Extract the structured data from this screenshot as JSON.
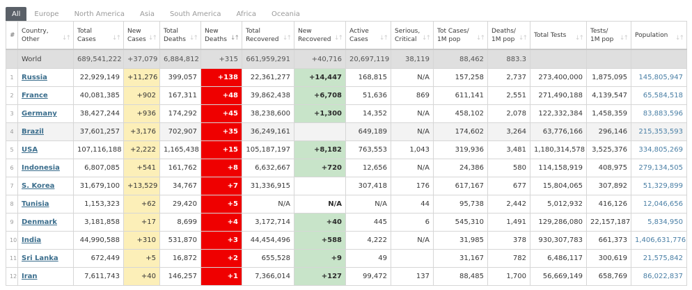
{
  "tabs": [
    {
      "label": "All",
      "active": true
    },
    {
      "label": "Europe",
      "active": false
    },
    {
      "label": "North America",
      "active": false
    },
    {
      "label": "Asia",
      "active": false
    },
    {
      "label": "South America",
      "active": false
    },
    {
      "label": "Africa",
      "active": false
    },
    {
      "label": "Oceania",
      "active": false
    }
  ],
  "table": {
    "sort_icon": "sort-arrows-icon",
    "active_sort_column": "New Deaths",
    "headers": [
      "#",
      "Country, Other",
      "Total Cases",
      "New Cases",
      "Total Deaths",
      "New Deaths",
      "Total Recovered",
      "New Recovered",
      "Active Cases",
      "Serious, Critical",
      "Tot Cases/ 1M pop",
      "Deaths/ 1M pop",
      "Total Tests",
      "Tests/ 1M pop",
      "Population"
    ],
    "world": {
      "country": "World",
      "total_cases": "689,541,222",
      "new_cases": "+37,079",
      "total_deaths": "6,884,812",
      "new_deaths": "+315",
      "total_recovered": "661,959,291",
      "new_recovered": "+40,716",
      "active_cases": "20,697,119",
      "serious_critical": "38,119",
      "tot_cases_1m": "88,462",
      "deaths_1m": "883.3",
      "total_tests": "",
      "tests_1m": "",
      "population": ""
    },
    "rows": [
      {
        "idx": "1",
        "country": "Russia",
        "total_cases": "22,929,149",
        "new_cases": "+11,276",
        "total_deaths": "399,057",
        "new_deaths": "+138",
        "total_recovered": "22,361,277",
        "new_recovered": "+14,447",
        "active_cases": "168,815",
        "serious_critical": "N/A",
        "tot_cases_1m": "157,258",
        "deaths_1m": "2,737",
        "total_tests": "273,400,000",
        "tests_1m": "1,875,095",
        "population": "145,805,947"
      },
      {
        "idx": "2",
        "country": "France",
        "total_cases": "40,081,385",
        "new_cases": "+902",
        "total_deaths": "167,311",
        "new_deaths": "+48",
        "total_recovered": "39,862,438",
        "new_recovered": "+6,708",
        "active_cases": "51,636",
        "serious_critical": "869",
        "tot_cases_1m": "611,141",
        "deaths_1m": "2,551",
        "total_tests": "271,490,188",
        "tests_1m": "4,139,547",
        "population": "65,584,518"
      },
      {
        "idx": "3",
        "country": "Germany",
        "total_cases": "38,427,244",
        "new_cases": "+936",
        "total_deaths": "174,292",
        "new_deaths": "+45",
        "total_recovered": "38,238,600",
        "new_recovered": "+1,300",
        "active_cases": "14,352",
        "serious_critical": "N/A",
        "tot_cases_1m": "458,102",
        "deaths_1m": "2,078",
        "total_tests": "122,332,384",
        "tests_1m": "1,458,359",
        "population": "83,883,596"
      },
      {
        "idx": "4",
        "country": "Brazil",
        "total_cases": "37,601,257",
        "new_cases": "+3,176",
        "total_deaths": "702,907",
        "new_deaths": "+35",
        "total_recovered": "36,249,161",
        "new_recovered": "",
        "active_cases": "649,189",
        "serious_critical": "N/A",
        "tot_cases_1m": "174,602",
        "deaths_1m": "3,264",
        "total_tests": "63,776,166",
        "tests_1m": "296,146",
        "population": "215,353,593"
      },
      {
        "idx": "5",
        "country": "USA",
        "total_cases": "107,116,188",
        "new_cases": "+2,222",
        "total_deaths": "1,165,438",
        "new_deaths": "+15",
        "total_recovered": "105,187,197",
        "new_recovered": "+8,182",
        "active_cases": "763,553",
        "serious_critical": "1,043",
        "tot_cases_1m": "319,936",
        "deaths_1m": "3,481",
        "total_tests": "1,180,314,578",
        "tests_1m": "3,525,376",
        "population": "334,805,269"
      },
      {
        "idx": "6",
        "country": "Indonesia",
        "total_cases": "6,807,085",
        "new_cases": "+541",
        "total_deaths": "161,762",
        "new_deaths": "+8",
        "total_recovered": "6,632,667",
        "new_recovered": "+720",
        "active_cases": "12,656",
        "serious_critical": "N/A",
        "tot_cases_1m": "24,386",
        "deaths_1m": "580",
        "total_tests": "114,158,919",
        "tests_1m": "408,975",
        "population": "279,134,505"
      },
      {
        "idx": "7",
        "country": "S. Korea",
        "total_cases": "31,679,100",
        "new_cases": "+13,529",
        "total_deaths": "34,767",
        "new_deaths": "+7",
        "total_recovered": "31,336,915",
        "new_recovered": "",
        "active_cases": "307,418",
        "serious_critical": "176",
        "tot_cases_1m": "617,167",
        "deaths_1m": "677",
        "total_tests": "15,804,065",
        "tests_1m": "307,892",
        "population": "51,329,899"
      },
      {
        "idx": "8",
        "country": "Tunisia",
        "total_cases": "1,153,323",
        "new_cases": "+62",
        "total_deaths": "29,420",
        "new_deaths": "+5",
        "total_recovered": "N/A",
        "new_recovered": "N/A",
        "active_cases": "N/A",
        "serious_critical": "44",
        "tot_cases_1m": "95,738",
        "deaths_1m": "2,442",
        "total_tests": "5,012,932",
        "tests_1m": "416,126",
        "population": "12,046,656"
      },
      {
        "idx": "9",
        "country": "Denmark",
        "total_cases": "3,181,858",
        "new_cases": "+17",
        "total_deaths": "8,699",
        "new_deaths": "+4",
        "total_recovered": "3,172,714",
        "new_recovered": "+40",
        "active_cases": "445",
        "serious_critical": "6",
        "tot_cases_1m": "545,310",
        "deaths_1m": "1,491",
        "total_tests": "129,286,080",
        "tests_1m": "22,157,187",
        "population": "5,834,950"
      },
      {
        "idx": "10",
        "country": "India",
        "total_cases": "44,990,588",
        "new_cases": "+310",
        "total_deaths": "531,870",
        "new_deaths": "+3",
        "total_recovered": "44,454,496",
        "new_recovered": "+588",
        "active_cases": "4,222",
        "serious_critical": "N/A",
        "tot_cases_1m": "31,985",
        "deaths_1m": "378",
        "total_tests": "930,307,783",
        "tests_1m": "661,373",
        "population": "1,406,631,776"
      },
      {
        "idx": "11",
        "country": "Sri Lanka",
        "total_cases": "672,449",
        "new_cases": "+5",
        "total_deaths": "16,872",
        "new_deaths": "+2",
        "total_recovered": "655,528",
        "new_recovered": "+9",
        "active_cases": "49",
        "serious_critical": "",
        "tot_cases_1m": "31,167",
        "deaths_1m": "782",
        "total_tests": "6,486,117",
        "tests_1m": "300,619",
        "population": "21,575,842"
      },
      {
        "idx": "12",
        "country": "Iran",
        "total_cases": "7,611,743",
        "new_cases": "+40",
        "total_deaths": "146,257",
        "new_deaths": "+1",
        "total_recovered": "7,366,014",
        "new_recovered": "+127",
        "active_cases": "99,472",
        "serious_critical": "137",
        "tot_cases_1m": "88,485",
        "deaths_1m": "1,700",
        "total_tests": "56,669,149",
        "tests_1m": "658,769",
        "population": "86,022,837"
      }
    ]
  },
  "colors": {
    "tab_active_bg": "#5a6068",
    "new_cases_bg": "#fcefb8",
    "new_deaths_bg": "#ef0000",
    "new_recovered_bg": "#c8e4c9",
    "world_row_bg": "#dfdfdf",
    "country_link": "#3a6d8c",
    "population_text": "#4a7fa5"
  }
}
